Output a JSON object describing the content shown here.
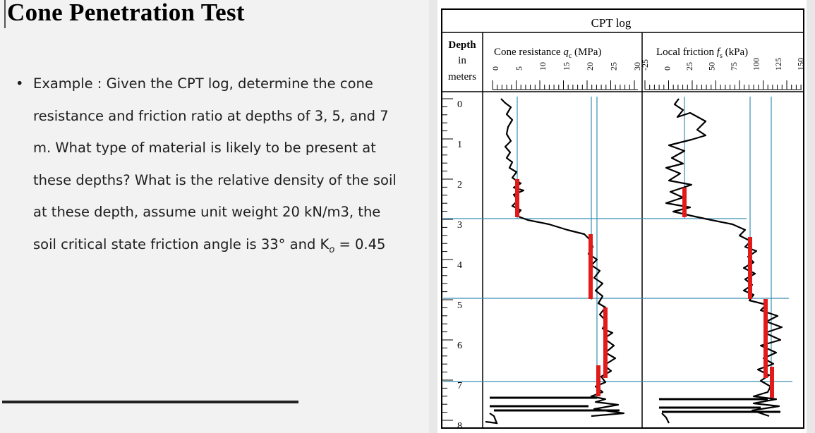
{
  "slide": {
    "title": "Cone Penetration Test",
    "bullet": "•",
    "example_text": "Example : Given the CPT log, determine the cone resistance and friction ratio at depths of 3, 5, and 7 m. What type of material is likely to be present at these depths? What is the relative density of the soil at these depth, assume unit weight 20 kN/m3, the soil critical state friction angle is 33° and K",
    "k_subscript": "o",
    "k_value": " = 0.45"
  },
  "log": {
    "title": "CPT log",
    "depth_header": [
      "Depth",
      "in",
      "meters"
    ],
    "cone_header_prefix": "Cone resistance ",
    "cone_symbol": "q",
    "cone_subscript": "c",
    "cone_unit": " (MPa)",
    "friction_header_prefix": "Local friction ",
    "friction_symbol": "f",
    "friction_subscript": "s",
    "friction_unit": " (kPa)",
    "cone_ticks": [
      "0",
      "5",
      "10",
      "15",
      "20",
      "25",
      "30"
    ],
    "friction_ticks": [
      "-25",
      "0",
      "25",
      "50",
      "75",
      "100",
      "125",
      "150"
    ],
    "depth_ticks": [
      "0",
      "1",
      "2",
      "3",
      "4",
      "5",
      "6",
      "7",
      "8"
    ],
    "colors": {
      "trace": "#000000",
      "marker": "#e31a1a",
      "guide": "#3a8fb5"
    }
  }
}
